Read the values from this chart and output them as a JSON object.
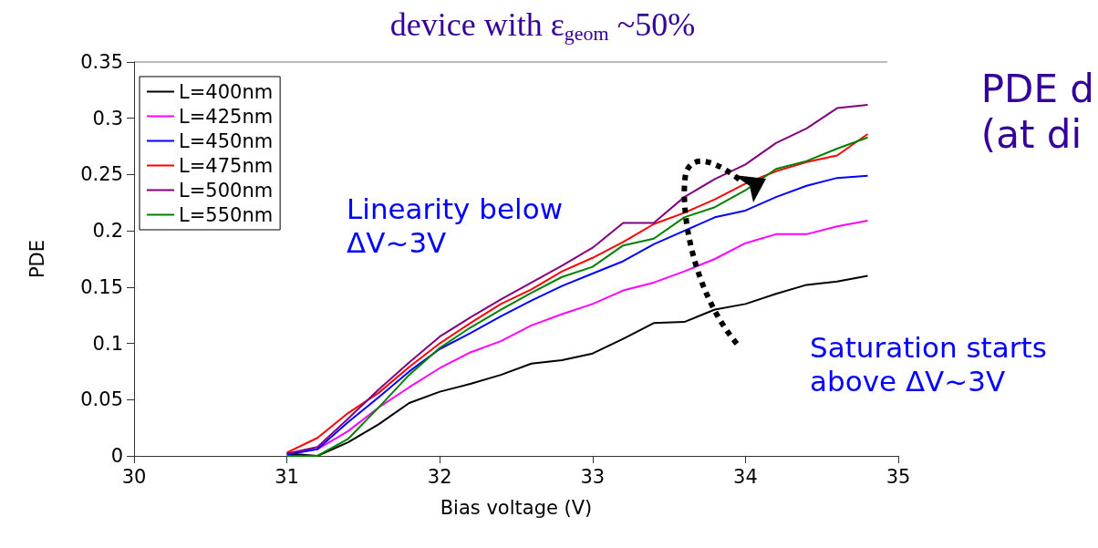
{
  "chart_data": {
    "type": "line",
    "title": "device with ε$_{geom}$ ~50%",
    "xlabel": "Bias voltage (V)",
    "ylabel": "PDE",
    "x": [
      31.0,
      31.2,
      31.4,
      31.6,
      31.8,
      32.0,
      32.2,
      32.4,
      32.6,
      32.8,
      33.0,
      33.2,
      33.4,
      33.6,
      33.8,
      34.0,
      34.2,
      34.4,
      34.6,
      34.8
    ],
    "series": [
      {
        "name": "L=400nm",
        "color": "#000000",
        "values": [
          0.002,
          0.0,
          0.012,
          0.028,
          0.047,
          0.057,
          0.064,
          0.072,
          0.082,
          0.085,
          0.091,
          0.104,
          0.118,
          0.119,
          0.13,
          0.135,
          0.144,
          0.152,
          0.155,
          0.16
        ]
      },
      {
        "name": "L=425nm",
        "color": "#ff00ff",
        "values": [
          0.002,
          0.006,
          0.022,
          0.043,
          0.061,
          0.078,
          0.092,
          0.102,
          0.116,
          0.126,
          0.135,
          0.147,
          0.154,
          0.164,
          0.175,
          0.189,
          0.197,
          0.197,
          0.204,
          0.209
        ]
      },
      {
        "name": "L=450nm",
        "color": "#0000ff",
        "values": [
          0.001,
          0.006,
          0.03,
          0.052,
          0.075,
          0.095,
          0.109,
          0.124,
          0.138,
          0.151,
          0.162,
          0.173,
          0.188,
          0.2,
          0.212,
          0.218,
          0.23,
          0.24,
          0.247,
          0.249
        ]
      },
      {
        "name": "L=475nm",
        "color": "#ff0000",
        "values": [
          0.003,
          0.016,
          0.038,
          0.056,
          0.079,
          0.1,
          0.118,
          0.135,
          0.148,
          0.164,
          0.176,
          0.19,
          0.206,
          0.216,
          0.228,
          0.242,
          0.253,
          0.261,
          0.267,
          0.286
        ]
      },
      {
        "name": "L=500nm",
        "color": "#800080",
        "values": [
          0.002,
          0.008,
          0.033,
          0.059,
          0.083,
          0.106,
          0.123,
          0.139,
          0.154,
          0.169,
          0.185,
          0.207,
          0.207,
          0.23,
          0.246,
          0.259,
          0.278,
          0.291,
          0.309,
          0.312
        ]
      },
      {
        "name": "L=550nm",
        "color": "#008000",
        "values": [
          0.0,
          0.0,
          0.015,
          0.043,
          0.072,
          0.096,
          0.114,
          0.13,
          0.145,
          0.159,
          0.168,
          0.187,
          0.193,
          0.212,
          0.221,
          0.236,
          0.255,
          0.262,
          0.273,
          0.283
        ]
      }
    ],
    "xlim": [
      30,
      35
    ],
    "xticks": [
      30,
      31,
      32,
      33,
      34,
      35
    ],
    "ylim": [
      0,
      0.35
    ],
    "yticks": [
      0,
      0.05,
      0.1,
      0.15,
      0.2,
      0.25,
      0.3,
      0.35
    ],
    "grid": false,
    "legend": "top left",
    "marker": "none",
    "line_style": "solid",
    "annotations": [
      "Linearity below\nΔV~3V",
      "Saturation starts\nabove ΔV~3V",
      "PDE d\n(at di"
    ]
  }
}
